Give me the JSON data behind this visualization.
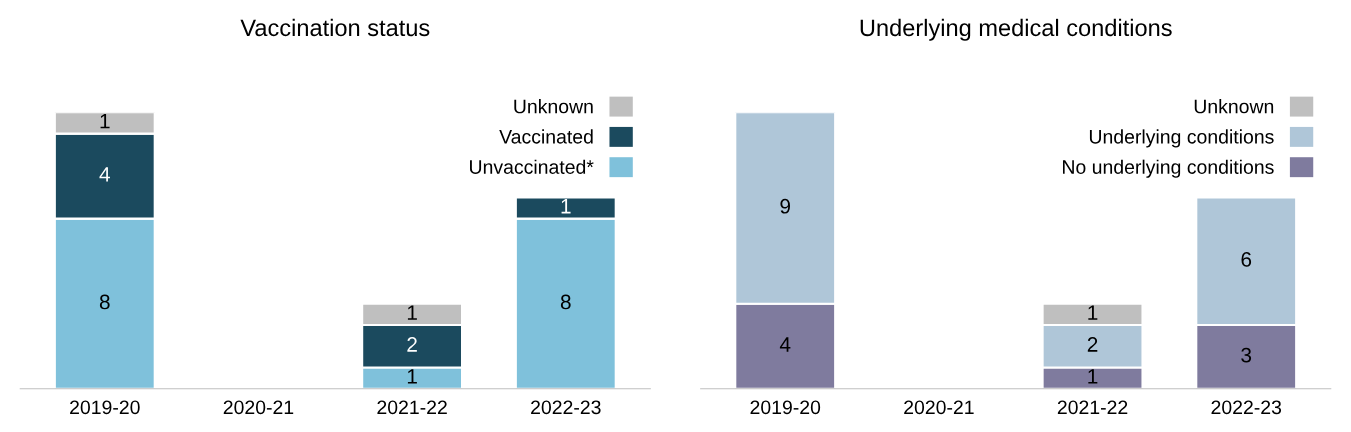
{
  "chart_data": [
    {
      "type": "bar",
      "title": "Vaccination status",
      "stacked": true,
      "data_labels": true,
      "legend": "top right",
      "grid": false,
      "tick_labels": "x",
      "categories": [
        "2019-20",
        "2020-21",
        "2021-22",
        "2022-23"
      ],
      "series": [
        {
          "name": "Unvaccinated*",
          "color": "#7fc1db",
          "values": [
            8,
            null,
            1,
            8
          ]
        },
        {
          "name": "Vaccinated",
          "color": "#1b4a5e",
          "values": [
            4,
            null,
            2,
            1
          ]
        },
        {
          "name": "Unknown",
          "color": "#bfbfbf",
          "values": [
            1,
            null,
            1,
            null
          ]
        }
      ]
    },
    {
      "type": "bar",
      "title": "Underlying medical conditions",
      "stacked": true,
      "data_labels": true,
      "legend": "top right",
      "grid": false,
      "tick_labels": "x",
      "categories": [
        "2019-20",
        "2020-21",
        "2021-22",
        "2022-23"
      ],
      "series": [
        {
          "name": "No underlying conditions",
          "color": "#7f7b9e",
          "values": [
            4,
            null,
            1,
            3
          ]
        },
        {
          "name": "Underlying conditions",
          "color": "#afc6d8",
          "values": [
            9,
            null,
            2,
            6
          ]
        },
        {
          "name": "Unknown",
          "color": "#bfbfbf",
          "values": [
            null,
            null,
            1,
            null
          ]
        }
      ]
    }
  ]
}
